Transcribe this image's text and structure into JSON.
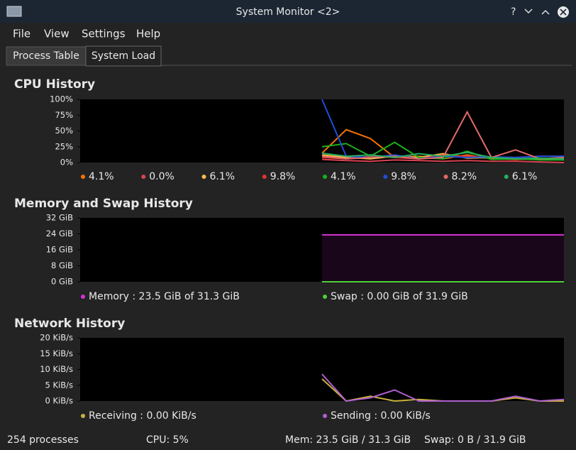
{
  "window": {
    "title": "System Monitor <2>"
  },
  "menu": [
    "File",
    "View",
    "Settings",
    "Help"
  ],
  "tabs": [
    "Process Table",
    "System Load"
  ],
  "chart_data": [
    {
      "type": "line",
      "title": "CPU History",
      "ylim": [
        0,
        100
      ],
      "yticks": [
        {
          "value": 0,
          "label": "0%"
        },
        {
          "value": 25,
          "label": "25%"
        },
        {
          "value": 50,
          "label": "50%"
        },
        {
          "value": 75,
          "label": "75%"
        },
        {
          "value": 100,
          "label": "100%"
        }
      ],
      "series": [
        {
          "name": "4.1%",
          "color": "#f67400",
          "values": [
            null,
            null,
            null,
            null,
            null,
            null,
            null,
            null,
            null,
            null,
            15,
            52,
            38,
            8,
            10,
            6,
            12,
            6,
            5,
            6,
            4
          ]
        },
        {
          "name": "0.0%",
          "color": "#da4453",
          "values": [
            null,
            null,
            null,
            null,
            null,
            null,
            null,
            null,
            null,
            null,
            5,
            3,
            2,
            4,
            3,
            2,
            3,
            2,
            2,
            1,
            0
          ]
        },
        {
          "name": "6.1%",
          "color": "#fdbc4b",
          "values": [
            null,
            null,
            null,
            null,
            null,
            null,
            null,
            null,
            null,
            null,
            12,
            8,
            6,
            10,
            8,
            14,
            7,
            8,
            6,
            5,
            6
          ]
        },
        {
          "name": "9.8%",
          "color": "#e3342f",
          "values": [
            null,
            null,
            null,
            null,
            null,
            null,
            null,
            null,
            null,
            null,
            8,
            6,
            10,
            8,
            6,
            12,
            10,
            9,
            8,
            10,
            10
          ]
        },
        {
          "name": "4.1%",
          "color": "#1cb01c",
          "values": [
            null,
            null,
            null,
            null,
            null,
            null,
            null,
            null,
            null,
            null,
            25,
            30,
            10,
            32,
            8,
            6,
            18,
            5,
            6,
            4,
            4
          ]
        },
        {
          "name": "9.8%",
          "color": "#1d4fd8",
          "values": [
            null,
            null,
            null,
            null,
            null,
            null,
            null,
            null,
            null,
            null,
            100,
            10,
            8,
            12,
            6,
            10,
            8,
            9,
            8,
            10,
            10
          ]
        },
        {
          "name": "8.2%",
          "color": "#e36a6a",
          "values": [
            null,
            null,
            null,
            null,
            null,
            null,
            null,
            null,
            null,
            null,
            10,
            6,
            8,
            10,
            6,
            8,
            80,
            8,
            20,
            6,
            8
          ]
        },
        {
          "name": "6.1%",
          "color": "#27ae60",
          "values": [
            null,
            null,
            null,
            null,
            null,
            null,
            null,
            null,
            null,
            null,
            15,
            10,
            12,
            8,
            14,
            10,
            16,
            8,
            6,
            7,
            6
          ]
        }
      ]
    },
    {
      "type": "area",
      "title": "Memory and Swap History",
      "ylim": [
        0,
        32
      ],
      "yticks": [
        {
          "value": 0,
          "label": "0 GiB"
        },
        {
          "value": 8,
          "label": "8 GiB"
        },
        {
          "value": 16,
          "label": "16 GiB"
        },
        {
          "value": 24,
          "label": "24 GiB"
        },
        {
          "value": 32,
          "label": "32 GiB"
        }
      ],
      "series": [
        {
          "name": "Memory : 23.5 GiB of 31.3 GiB",
          "color": "#d633d6",
          "values": [
            null,
            null,
            null,
            null,
            null,
            null,
            null,
            null,
            null,
            null,
            23.5,
            23.5,
            23.5,
            23.5,
            23.5,
            23.5,
            23.5,
            23.5,
            23.5,
            23.5,
            23.5
          ]
        },
        {
          "name": "Swap : 0.00 GiB of 31.9 GiB",
          "color": "#4cd137",
          "values": [
            null,
            null,
            null,
            null,
            null,
            null,
            null,
            null,
            null,
            null,
            0,
            0,
            0,
            0,
            0,
            0,
            0,
            0,
            0,
            0,
            0
          ]
        }
      ]
    },
    {
      "type": "line",
      "title": "Network History",
      "ylim": [
        0,
        20
      ],
      "yticks": [
        {
          "value": 0,
          "label": "0 KiB/s"
        },
        {
          "value": 5,
          "label": "5 KiB/s"
        },
        {
          "value": 10,
          "label": "10 KiB/s"
        },
        {
          "value": 15,
          "label": "15 KiB/s"
        },
        {
          "value": 20,
          "label": "20 KiB/s"
        }
      ],
      "series": [
        {
          "name": "Receiving : 0.00 KiB/s",
          "color": "#c9b23c",
          "values": [
            null,
            null,
            null,
            null,
            null,
            null,
            null,
            null,
            null,
            null,
            7,
            0,
            1.5,
            0,
            0.5,
            0,
            0,
            0,
            1,
            0,
            0
          ]
        },
        {
          "name": "Sending : 0.00 KiB/s",
          "color": "#b060d0",
          "values": [
            null,
            null,
            null,
            null,
            null,
            null,
            null,
            null,
            null,
            null,
            8.5,
            0,
            1,
            3.5,
            0,
            0,
            0,
            0,
            1.5,
            0,
            0.5
          ]
        }
      ]
    }
  ],
  "status_bar": [
    "254 processes",
    "CPU: 5%",
    "Mem: 23.5 GiB / 31.3 GiB",
    "Swap: 0 B / 31.9 GiB"
  ]
}
